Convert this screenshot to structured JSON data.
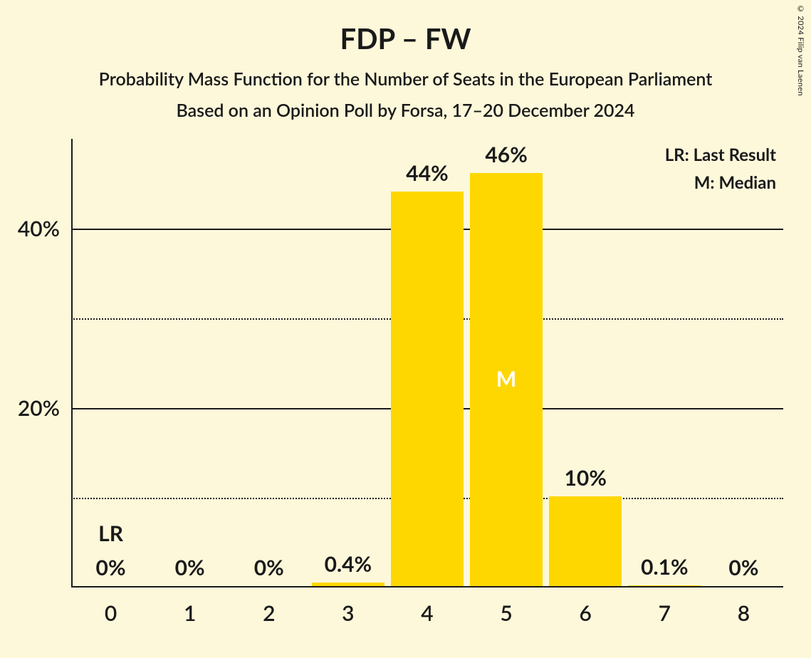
{
  "title": "FDP – FW",
  "subtitle": "Probability Mass Function for the Number of Seats in the European Parliament",
  "subtitle2": "Based on an Opinion Poll by Forsa, 17–20 December 2024",
  "copyright": "© 2024 Filip van Laenen",
  "legend": {
    "lr": "LR: Last Result",
    "m": "M: Median"
  },
  "chart": {
    "type": "bar",
    "background_color": "#fdf8da",
    "bar_color": "#ffd700",
    "text_color": "#1a1a1a",
    "median_text_color": "#ffffff",
    "grid_color": "#1a1a1a",
    "y_axis": {
      "min": 0,
      "max": 50,
      "major_ticks": [
        20,
        40
      ],
      "minor_ticks": [
        10,
        30
      ],
      "tick_labels": {
        "20": "20%",
        "40": "40%"
      }
    },
    "categories": [
      "0",
      "1",
      "2",
      "3",
      "4",
      "5",
      "6",
      "7",
      "8"
    ],
    "values": [
      0,
      0,
      0,
      0.4,
      44,
      46,
      10,
      0.1,
      0
    ],
    "value_labels": [
      "0%",
      "0%",
      "0%",
      "0.4%",
      "44%",
      "46%",
      "10%",
      "0.1%",
      "0%"
    ],
    "lr_index": 0,
    "lr_marker": "LR",
    "median_index": 5,
    "median_marker": "M",
    "title_fontsize": 40,
    "subtitle_fontsize": 25,
    "value_label_fontsize": 30,
    "axis_label_fontsize": 30,
    "legend_fontsize": 24,
    "bar_width_ratio": 0.92
  }
}
